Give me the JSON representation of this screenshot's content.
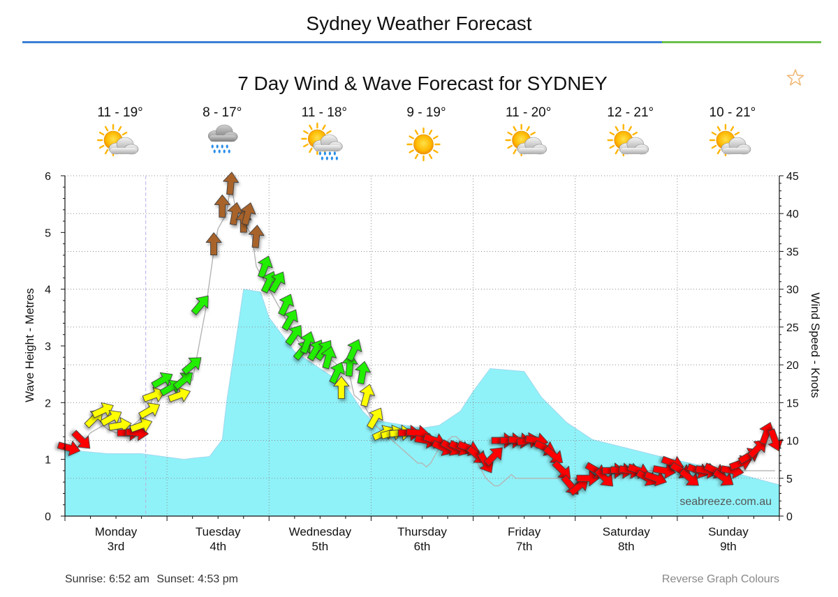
{
  "page": {
    "title": "Sydney Weather Forecast",
    "sunrise": "Sunrise: 6:52 am",
    "sunset": "Sunset: 4:53 pm",
    "reverse_colours_link": "Reverse Graph Colours"
  },
  "colors": {
    "rule_blue": "#3a7fd5",
    "rule_green": "#6cc04a",
    "wave_fill": "#8ff2f8",
    "wind_red": "#ff0000",
    "wind_yellow": "#ffff00",
    "wind_green": "#22ee00",
    "wind_brown": "#a8642a"
  },
  "chart_data": {
    "type": "area",
    "title": "7 Day Wind & Wave Forecast for SYDNEY",
    "ylabel": "Wave Height - Metres",
    "y2label": "Wind Speed - Knots",
    "watermark": "seabreeze.com.au",
    "ylim": [
      0,
      6
    ],
    "y2lim": [
      0,
      45
    ],
    "yticks": [
      "0",
      "1",
      "2",
      "3",
      "4",
      "5",
      "6"
    ],
    "y2ticks": [
      "0",
      "5",
      "10",
      "15",
      "20",
      "25",
      "30",
      "35",
      "40",
      "45"
    ],
    "x_hours_range": [
      0,
      168
    ],
    "days": [
      {
        "line1": "Monday",
        "line2": "3rd",
        "temps": "11 - 19°",
        "icon": "sun-cloud-icon"
      },
      {
        "line1": "Tuesday",
        "line2": "4th",
        "temps": "8 - 17°",
        "icon": "rain-cloud-icon"
      },
      {
        "line1": "Wednesday",
        "line2": "5th",
        "temps": "11 - 18°",
        "icon": "sun-rain-icon"
      },
      {
        "line1": "Thursday",
        "line2": "6th",
        "temps": "9 - 19°",
        "icon": "sun-icon"
      },
      {
        "line1": "Friday",
        "line2": "7th",
        "temps": "11 - 20°",
        "icon": "sun-cloud-icon"
      },
      {
        "line1": "Saturday",
        "line2": "8th",
        "temps": "12 - 21°",
        "icon": "sun-cloud-icon"
      },
      {
        "line1": "Sunday",
        "line2": "9th",
        "temps": "10 - 21°",
        "icon": "sun-cloud-icon"
      }
    ],
    "wave_series": {
      "name": "Wave Height",
      "hours": [
        0,
        10,
        18,
        28,
        30,
        34,
        37,
        38,
        42,
        46,
        48,
        54,
        60,
        66,
        70,
        72,
        80,
        84,
        88,
        93,
        96,
        100,
        108,
        112,
        118,
        124,
        132,
        140,
        146,
        152,
        158,
        163,
        168
      ],
      "values": [
        1.17,
        1.1,
        1.1,
        1.0,
        1.02,
        1.05,
        1.35,
        2.0,
        4.0,
        3.95,
        3.5,
        2.9,
        2.6,
        2.3,
        1.85,
        1.7,
        1.6,
        1.55,
        1.6,
        1.85,
        2.2,
        2.6,
        2.55,
        2.1,
        1.65,
        1.35,
        1.2,
        1.05,
        0.95,
        0.85,
        0.75,
        0.65,
        0.55
      ]
    },
    "wind_series": {
      "name": "Wind Speed",
      "hours": [
        0,
        3,
        6,
        9,
        10,
        12,
        14,
        16,
        19,
        21,
        24,
        27,
        30,
        31,
        33,
        35,
        36,
        37,
        38,
        39,
        40,
        41,
        42,
        43,
        44,
        45,
        46,
        47,
        48,
        49,
        50,
        51,
        52,
        53,
        54,
        55,
        56,
        57,
        58,
        59,
        60,
        61,
        62,
        63,
        64,
        65,
        66,
        67,
        68,
        69,
        70,
        71,
        72,
        73,
        74,
        75,
        76,
        77,
        78,
        79,
        80,
        81,
        82,
        83,
        84,
        85,
        86,
        87,
        88,
        89,
        90,
        91,
        92,
        93,
        94,
        95,
        96,
        97,
        98,
        99,
        100,
        101,
        102,
        103,
        104,
        105,
        106,
        107,
        108,
        109,
        110,
        111,
        112,
        113,
        114,
        115,
        116,
        117,
        118,
        119,
        120,
        121,
        122,
        123,
        124,
        125,
        126,
        127,
        128,
        129,
        130,
        131,
        132,
        133,
        134,
        135,
        136,
        137,
        138,
        139,
        140,
        141,
        142,
        143,
        144,
        145,
        146,
        147,
        148,
        149,
        150,
        151,
        152,
        153,
        154,
        155,
        156,
        157,
        158,
        159,
        160,
        161,
        162,
        163,
        164,
        165,
        166,
        167
      ],
      "values": [
        9,
        9,
        11,
        12,
        11.5,
        11,
        11,
        12,
        13.5,
        16,
        17,
        17.5,
        18,
        21,
        27,
        35,
        38,
        39,
        40,
        44,
        41,
        40,
        39,
        38,
        37,
        33,
        32,
        31,
        30,
        29,
        28,
        27,
        26,
        25,
        24,
        23,
        23,
        23,
        22.5,
        22.5,
        22,
        21.5,
        21,
        20.5,
        20,
        19.5,
        19,
        18.5,
        16,
        15.5,
        15,
        14,
        13,
        12,
        11.5,
        11,
        10.5,
        10,
        9.5,
        9,
        8.5,
        8,
        7.5,
        7,
        7,
        6.5,
        7,
        8,
        9,
        9.5,
        10,
        10.5,
        10.5,
        10,
        9.5,
        9,
        8,
        7,
        6,
        5,
        4.5,
        4,
        4,
        4.5,
        5,
        5.5,
        5,
        5,
        5,
        5,
        5,
        5,
        5,
        5,
        5,
        5,
        5,
        5,
        5,
        5,
        5,
        5,
        5,
        5,
        5,
        5,
        5,
        5,
        5,
        5,
        6,
        6,
        6,
        6,
        6,
        6,
        6,
        6,
        6,
        6,
        6,
        6,
        6,
        6,
        6,
        6,
        6,
        6,
        6,
        6,
        6,
        6,
        6,
        6,
        6,
        6,
        6,
        6,
        6,
        6,
        6,
        6,
        6,
        6,
        6,
        6,
        6,
        6
      ]
    },
    "wind_arrows": [
      {
        "h": 1,
        "kn": 9,
        "dir": 105,
        "c": "red"
      },
      {
        "h": 4,
        "kn": 10,
        "dir": 135,
        "c": "red"
      },
      {
        "h": 7,
        "kn": 13,
        "dir": 45,
        "c": "yellow"
      },
      {
        "h": 9,
        "kn": 14,
        "dir": 65,
        "c": "yellow"
      },
      {
        "h": 11,
        "kn": 13,
        "dir": 60,
        "c": "yellow"
      },
      {
        "h": 13,
        "kn": 12,
        "dir": 80,
        "c": "yellow"
      },
      {
        "h": 15,
        "kn": 11,
        "dir": 90,
        "c": "red"
      },
      {
        "h": 17,
        "kn": 11,
        "dir": 95,
        "c": "red"
      },
      {
        "h": 18,
        "kn": 12,
        "dir": 70,
        "c": "yellow"
      },
      {
        "h": 20,
        "kn": 14,
        "dir": 60,
        "c": "yellow"
      },
      {
        "h": 21,
        "kn": 16,
        "dir": 70,
        "c": "yellow"
      },
      {
        "h": 23,
        "kn": 18,
        "dir": 60,
        "c": "green"
      },
      {
        "h": 25,
        "kn": 17,
        "dir": 60,
        "c": "green"
      },
      {
        "h": 27,
        "kn": 16,
        "dir": 70,
        "c": "yellow"
      },
      {
        "h": 28,
        "kn": 18,
        "dir": 50,
        "c": "green"
      },
      {
        "h": 30,
        "kn": 20,
        "dir": 50,
        "c": "green"
      },
      {
        "h": 32,
        "kn": 28,
        "dir": 40,
        "c": "green"
      },
      {
        "h": 35,
        "kn": 36,
        "dir": 0,
        "c": "brown"
      },
      {
        "h": 37,
        "kn": 41,
        "dir": 0,
        "c": "brown"
      },
      {
        "h": 39,
        "kn": 44,
        "dir": 5,
        "c": "brown"
      },
      {
        "h": 40,
        "kn": 40,
        "dir": 10,
        "c": "brown"
      },
      {
        "h": 42,
        "kn": 39,
        "dir": 0,
        "c": "brown"
      },
      {
        "h": 43,
        "kn": 40,
        "dir": 15,
        "c": "brown"
      },
      {
        "h": 45,
        "kn": 37,
        "dir": 5,
        "c": "brown"
      },
      {
        "h": 47,
        "kn": 33,
        "dir": 20,
        "c": "green"
      },
      {
        "h": 48,
        "kn": 31,
        "dir": 25,
        "c": "green"
      },
      {
        "h": 50,
        "kn": 31,
        "dir": 30,
        "c": "green"
      },
      {
        "h": 52,
        "kn": 28,
        "dir": 25,
        "c": "green"
      },
      {
        "h": 53,
        "kn": 26,
        "dir": 30,
        "c": "green"
      },
      {
        "h": 54,
        "kn": 24,
        "dir": 35,
        "c": "green"
      },
      {
        "h": 56,
        "kn": 22,
        "dir": 40,
        "c": "green"
      },
      {
        "h": 57,
        "kn": 23,
        "dir": 20,
        "c": "green"
      },
      {
        "h": 59,
        "kn": 22,
        "dir": 30,
        "c": "green"
      },
      {
        "h": 61,
        "kn": 22,
        "dir": 35,
        "c": "green"
      },
      {
        "h": 62,
        "kn": 21,
        "dir": 15,
        "c": "green"
      },
      {
        "h": 64,
        "kn": 19,
        "dir": 25,
        "c": "green"
      },
      {
        "h": 65,
        "kn": 17,
        "dir": 0,
        "c": "yellow"
      },
      {
        "h": 67,
        "kn": 20,
        "dir": 5,
        "c": "green"
      },
      {
        "h": 68,
        "kn": 22,
        "dir": 25,
        "c": "green"
      },
      {
        "h": 70,
        "kn": 19,
        "dir": 10,
        "c": "green"
      },
      {
        "h": 71,
        "kn": 16,
        "dir": 15,
        "c": "yellow"
      },
      {
        "h": 73,
        "kn": 13,
        "dir": 30,
        "c": "yellow"
      },
      {
        "h": 75,
        "kn": 11,
        "dir": 65,
        "c": "yellow"
      },
      {
        "h": 77,
        "kn": 11,
        "dir": 75,
        "c": "yellow"
      },
      {
        "h": 79,
        "kn": 11,
        "dir": 85,
        "c": "yellow"
      },
      {
        "h": 81,
        "kn": 11,
        "dir": 90,
        "c": "red"
      },
      {
        "h": 83,
        "kn": 11,
        "dir": 95,
        "c": "red"
      },
      {
        "h": 85,
        "kn": 10,
        "dir": 100,
        "c": "red"
      },
      {
        "h": 87,
        "kn": 10,
        "dir": 110,
        "c": "red"
      },
      {
        "h": 89,
        "kn": 9,
        "dir": 115,
        "c": "red"
      },
      {
        "h": 91,
        "kn": 9,
        "dir": 120,
        "c": "red"
      },
      {
        "h": 93,
        "kn": 9,
        "dir": 115,
        "c": "red"
      },
      {
        "h": 95,
        "kn": 9,
        "dir": 110,
        "c": "red"
      },
      {
        "h": 97,
        "kn": 8,
        "dir": 130,
        "c": "red"
      },
      {
        "h": 99,
        "kn": 7,
        "dir": 150,
        "c": "red"
      },
      {
        "h": 101,
        "kn": 8,
        "dir": 45,
        "c": "red"
      },
      {
        "h": 103,
        "kn": 10,
        "dir": 90,
        "c": "red"
      },
      {
        "h": 105,
        "kn": 10,
        "dir": 90,
        "c": "red"
      },
      {
        "h": 107,
        "kn": 10,
        "dir": 95,
        "c": "red"
      },
      {
        "h": 109,
        "kn": 10,
        "dir": 80,
        "c": "red"
      },
      {
        "h": 111,
        "kn": 10,
        "dir": 100,
        "c": "red"
      },
      {
        "h": 113,
        "kn": 9,
        "dir": 115,
        "c": "red"
      },
      {
        "h": 115,
        "kn": 8,
        "dir": 130,
        "c": "red"
      },
      {
        "h": 117,
        "kn": 6,
        "dir": 135,
        "c": "red"
      },
      {
        "h": 119,
        "kn": 4,
        "dir": 140,
        "c": "red"
      },
      {
        "h": 121,
        "kn": 4,
        "dir": 50,
        "c": "red"
      },
      {
        "h": 123,
        "kn": 5,
        "dir": 90,
        "c": "red"
      },
      {
        "h": 125,
        "kn": 6,
        "dir": 120,
        "c": "red"
      },
      {
        "h": 127,
        "kn": 5,
        "dir": 135,
        "c": "red"
      },
      {
        "h": 129,
        "kn": 6,
        "dir": 90,
        "c": "red"
      },
      {
        "h": 131,
        "kn": 6,
        "dir": 95,
        "c": "red"
      },
      {
        "h": 133,
        "kn": 6,
        "dir": 100,
        "c": "red"
      },
      {
        "h": 135,
        "kn": 6,
        "dir": 110,
        "c": "red"
      },
      {
        "h": 137,
        "kn": 5,
        "dir": 120,
        "c": "red"
      },
      {
        "h": 139,
        "kn": 5,
        "dir": 110,
        "c": "red"
      },
      {
        "h": 141,
        "kn": 6,
        "dir": 100,
        "c": "red"
      },
      {
        "h": 143,
        "kn": 7,
        "dir": 110,
        "c": "red"
      },
      {
        "h": 145,
        "kn": 6,
        "dir": 120,
        "c": "red"
      },
      {
        "h": 147,
        "kn": 5,
        "dir": 130,
        "c": "red"
      },
      {
        "h": 149,
        "kn": 6,
        "dir": 110,
        "c": "red"
      },
      {
        "h": 151,
        "kn": 6,
        "dir": 100,
        "c": "red"
      },
      {
        "h": 153,
        "kn": 6,
        "dir": 115,
        "c": "red"
      },
      {
        "h": 155,
        "kn": 5,
        "dir": 125,
        "c": "red"
      },
      {
        "h": 157,
        "kn": 6,
        "dir": 100,
        "c": "red"
      },
      {
        "h": 159,
        "kn": 7,
        "dir": 70,
        "c": "red"
      },
      {
        "h": 161,
        "kn": 8,
        "dir": 60,
        "c": "red"
      },
      {
        "h": 163,
        "kn": 9,
        "dir": 45,
        "c": "red"
      },
      {
        "h": 165,
        "kn": 11,
        "dir": 20,
        "c": "red"
      },
      {
        "h": 167,
        "kn": 10,
        "dir": 160,
        "c": "red"
      }
    ]
  }
}
